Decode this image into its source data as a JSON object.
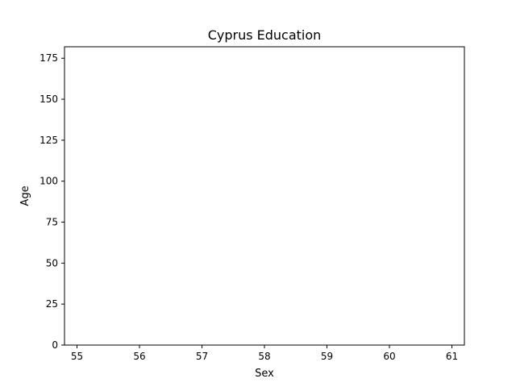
{
  "chart_data": {
    "type": "bar",
    "title": "Cyprus Education",
    "xlabel": "Sex",
    "ylabel": "Age",
    "xlim": [
      54.8,
      61.2
    ],
    "ylim": [
      0,
      182
    ],
    "x_ticks": [
      55,
      56,
      57,
      58,
      59,
      60,
      61
    ],
    "y_ticks": [
      0,
      25,
      50,
      75,
      100,
      125,
      150,
      175
    ],
    "categories": [],
    "values": [],
    "grid": false,
    "legend": "none"
  },
  "colors": {
    "axes": "#000000",
    "background": "#ffffff"
  }
}
